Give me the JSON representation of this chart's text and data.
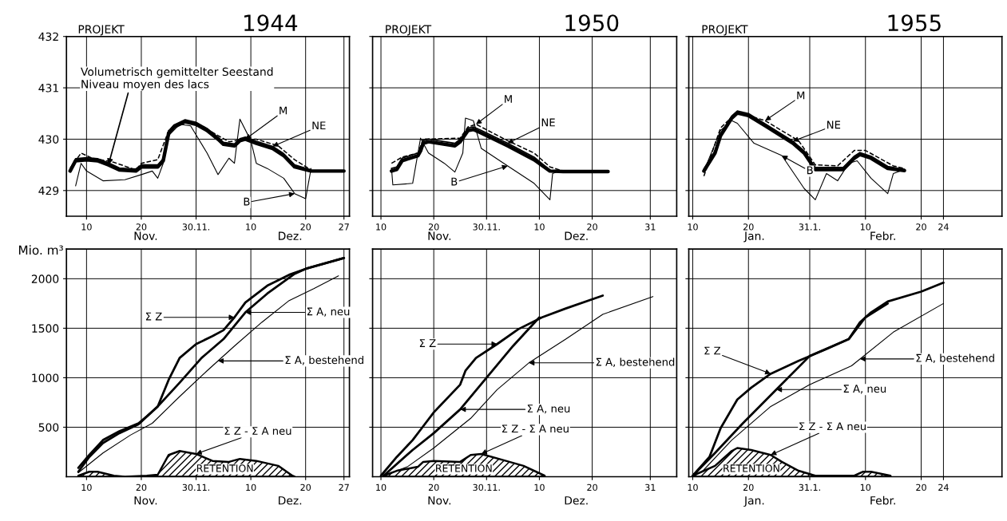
{
  "chart_data": [
    {
      "type": "line",
      "title": "1944",
      "subtitle": "PROJEKT",
      "xlim": [
        "1944-11-06T08:00",
        "1944-12-28"
      ],
      "xticks": [
        {
          "value": "1944-11-10",
          "label": "10"
        },
        {
          "value": "1944-11-20",
          "label": "20"
        },
        {
          "value": "1944-11-30",
          "label": "30.11."
        },
        {
          "value": "1944-12-10",
          "label": "10"
        },
        {
          "value": "1944-12-20",
          "label": "20"
        },
        {
          "value": "1944-12-27",
          "label": "27"
        }
      ],
      "ylim": [
        428.5,
        432
      ],
      "yticks": [
        429,
        430,
        431,
        432
      ],
      "grid": true,
      "series": [
        {
          "color": "#000000",
          "x": [
            "1944-11-07",
            "1944-11-08",
            "1944-11-10",
            "1944-11-12",
            "1944-11-14",
            "1944-11-16",
            "1944-11-19",
            "1944-11-20",
            "1944-11-23",
            "1944-11-24",
            "1944-11-25",
            "1944-11-26",
            "1944-11-28",
            "1944-11-30",
            "1944-12-02",
            "1944-12-04",
            "1944-12-05",
            "1944-12-07",
            "1944-12-08",
            "1944-12-09",
            "1944-12-11",
            "1944-12-14",
            "1944-12-16",
            "1944-12-18",
            "1944-12-21",
            "1944-12-27"
          ],
          "values": [
            429.38,
            429.58,
            429.6,
            429.58,
            429.5,
            429.4,
            429.38,
            429.46,
            429.46,
            429.58,
            430.12,
            430.24,
            430.34,
            430.29,
            430.17,
            430.0,
            429.9,
            429.87,
            429.97,
            430.0,
            429.92,
            429.82,
            429.68,
            429.46,
            429.38,
            429.38
          ]
        },
        {
          "color": "#000000",
          "line_style": "dashed",
          "x": [
            "1944-11-07",
            "1944-11-09",
            "1944-11-11",
            "1944-11-15",
            "1944-11-19",
            "1944-11-20",
            "1944-11-23",
            "1944-11-25",
            "1944-11-28",
            "1944-12-01",
            "1944-12-04",
            "1944-12-06",
            "1944-12-09",
            "1944-12-11",
            "1944-12-15",
            "1944-12-18",
            "1944-12-21"
          ],
          "values": [
            429.43,
            429.73,
            429.63,
            429.55,
            429.4,
            429.53,
            429.6,
            430.17,
            430.36,
            430.26,
            430.07,
            429.95,
            430.0,
            430.0,
            429.87,
            429.6,
            429.4
          ]
        },
        {
          "color": "#000000",
          "x": [
            "1944-11-07",
            "1944-11-08",
            "1944-11-10",
            "1944-11-12",
            "1944-11-14",
            "1944-11-16",
            "1944-11-19",
            "1944-11-20",
            "1944-11-23",
            "1944-11-24",
            "1944-11-25",
            "1944-11-26",
            "1944-11-28",
            "1944-11-30",
            "1944-12-02",
            "1944-12-04",
            "1944-12-05",
            "1944-12-07",
            "1944-12-08",
            "1944-12-09",
            "1944-12-11",
            "1944-12-14",
            "1944-12-16",
            "1944-12-18",
            "1944-12-21"
          ],
          "values": [
            429.42,
            429.62,
            429.64,
            429.62,
            429.54,
            429.44,
            429.42,
            429.5,
            429.5,
            429.62,
            430.16,
            430.28,
            430.38,
            430.33,
            430.21,
            430.04,
            429.94,
            429.91,
            430.01,
            430.04,
            429.96,
            429.86,
            429.72,
            429.5,
            429.4
          ]
        },
        {
          "color": "#000000",
          "x": [
            "1944-11-08",
            "1944-11-09",
            "1944-11-10",
            "1944-11-13",
            "1944-11-17",
            "1944-11-20",
            "1944-11-22",
            "1944-11-23",
            "1944-11-24",
            "1944-11-25",
            "1944-11-27",
            "1944-11-29",
            "1944-12-02",
            "1944-12-04",
            "1944-12-06",
            "1944-12-07",
            "1944-12-08",
            "1944-12-10",
            "1944-12-11",
            "1944-12-13",
            "1944-12-16",
            "1944-12-18",
            "1944-12-20",
            "1944-12-21"
          ],
          "values": [
            429.09,
            429.53,
            429.38,
            429.19,
            429.21,
            429.31,
            429.38,
            429.24,
            429.53,
            430.07,
            430.29,
            430.26,
            429.73,
            429.31,
            429.63,
            429.53,
            430.39,
            429.97,
            429.53,
            429.43,
            429.24,
            428.94,
            428.84,
            429.43
          ]
        }
      ],
      "annotations": [
        {
          "text": "Volumetrisch gemittelter Seestand\nNiveau moyen des lacs",
          "x": "1944-11-14",
          "y": 429.5
        },
        {
          "text": "M",
          "x": "1944-12-09",
          "y": 430.0
        },
        {
          "text": "NE",
          "x": "1944-12-14",
          "y": 429.86
        },
        {
          "text": "B",
          "x": "1944-12-18",
          "y": 428.94
        },
        "Nov.",
        "Dez."
      ]
    },
    {
      "type": "line",
      "title": "1950",
      "subtitle": "PROJEKT",
      "tick_labels": "x",
      "xlim": [
        "1950-11-08T10:00",
        "1951-01-05"
      ],
      "xticks": [
        {
          "value": "1950-11-10",
          "label": "10"
        },
        {
          "value": "1950-11-20",
          "label": "20"
        },
        {
          "value": "1950-11-30",
          "label": "30.11."
        },
        {
          "value": "1950-12-10",
          "label": "10"
        },
        {
          "value": "1950-12-20",
          "label": "20"
        },
        {
          "value": "1950-12-31",
          "label": "31"
        }
      ],
      "ylim": [
        428.5,
        432
      ],
      "yticks": [
        429,
        430,
        431,
        432
      ],
      "grid": true,
      "series": [
        {
          "color": "#000000",
          "x": [
            "1950-11-12",
            "1950-11-13",
            "1950-11-14",
            "1950-11-17",
            "1950-11-17T12:00",
            "1950-11-18",
            "1950-11-19",
            "1950-11-24",
            "1950-11-25",
            "1950-11-26T12:00",
            "1950-11-27T12:00",
            "1950-11-29",
            "1950-12-04",
            "1950-12-09",
            "1950-12-12",
            "1950-12-14T12:00",
            "1950-12-23"
          ],
          "values": [
            429.38,
            429.41,
            429.58,
            429.68,
            429.77,
            429.92,
            429.95,
            429.87,
            429.95,
            430.17,
            430.19,
            430.12,
            429.87,
            429.6,
            429.38,
            429.37,
            429.37
          ]
        },
        {
          "color": "#000000",
          "line_style": "dashed",
          "x": [
            "1950-11-12",
            "1950-11-14",
            "1950-11-17",
            "1950-11-18",
            "1950-11-25",
            "1950-11-26T12:00",
            "1950-11-28",
            "1950-12-04",
            "1950-12-09",
            "1950-12-12",
            "1950-12-14T12:00"
          ],
          "values": [
            429.53,
            429.65,
            429.73,
            430.0,
            430.02,
            430.24,
            430.29,
            429.97,
            429.73,
            429.46,
            429.38
          ]
        },
        {
          "color": "#000000",
          "x": [
            "1950-11-12",
            "1950-11-13",
            "1950-11-14",
            "1950-11-17",
            "1950-11-17T12:00",
            "1950-11-18",
            "1950-11-19",
            "1950-11-24",
            "1950-11-25",
            "1950-11-26T12:00",
            "1950-11-27T12:00",
            "1950-11-29",
            "1950-12-04",
            "1950-12-09",
            "1950-12-12"
          ],
          "values": [
            429.43,
            429.46,
            429.63,
            429.73,
            429.82,
            429.97,
            430.0,
            429.92,
            430.0,
            430.22,
            430.24,
            430.17,
            429.92,
            429.65,
            429.4
          ]
        },
        {
          "color": "#000000",
          "x": [
            "1950-11-12",
            "1950-11-12T06:00",
            "1950-11-16",
            "1950-11-17T12:00",
            "1950-11-19",
            "1950-11-22",
            "1950-11-24",
            "1950-11-25T12:00",
            "1950-11-26",
            "1950-11-27T12:00",
            "1950-11-29",
            "1950-12-04",
            "1950-12-09",
            "1950-12-12",
            "1950-12-12T12:00",
            "1950-12-13T12:00"
          ],
          "values": [
            429.43,
            429.11,
            429.14,
            430.02,
            429.73,
            429.53,
            429.36,
            429.73,
            430.41,
            430.36,
            429.82,
            429.48,
            429.14,
            428.82,
            429.33,
            429.37
          ]
        }
      ],
      "annotations": [
        {
          "text": "M",
          "x": "1950-11-28",
          "y": 430.29
        },
        {
          "text": "NE",
          "x": "1950-12-04",
          "y": 429.92
        },
        {
          "text": "B",
          "x": "1950-12-04",
          "y": 429.48
        },
        "Nov.",
        "Dez."
      ]
    },
    {
      "type": "line",
      "title": "1955",
      "subtitle": "PROJEKT",
      "tick_labels": "x",
      "xlim": [
        "1955-01-09T07:00",
        "1955-03-06T12:00"
      ],
      "xticks": [
        {
          "value": "1955-01-10",
          "label": "10"
        },
        {
          "value": "1955-01-20",
          "label": "20"
        },
        {
          "value": "1955-01-31",
          "label": "31.1."
        },
        {
          "value": "1955-02-10",
          "label": "10"
        },
        {
          "value": "1955-02-20",
          "label": "20"
        },
        {
          "value": "1955-02-24",
          "label": "24"
        }
      ],
      "ylim": [
        428.5,
        432
      ],
      "yticks": [
        429,
        430,
        431,
        432
      ],
      "grid": true,
      "series": [
        {
          "color": "#000000",
          "x": [
            "1955-01-12",
            "1955-01-14",
            "1955-01-15",
            "1955-01-17",
            "1955-01-18",
            "1955-01-20",
            "1955-01-23",
            "1955-01-28",
            "1955-01-30",
            "1955-02-01",
            "1955-02-06",
            "1955-02-08",
            "1955-02-09",
            "1955-02-11",
            "1955-02-14",
            "1955-02-17"
          ],
          "values": [
            429.38,
            429.73,
            430.07,
            430.41,
            430.51,
            430.46,
            430.26,
            429.92,
            429.73,
            429.41,
            429.41,
            429.63,
            429.7,
            429.63,
            429.43,
            429.39
          ]
        },
        {
          "color": "#000000",
          "line_style": "dashed",
          "x": [
            "1955-01-12",
            "1955-01-15",
            "1955-01-18",
            "1955-01-23",
            "1955-01-29",
            "1955-02-01",
            "1955-02-05",
            "1955-02-08",
            "1955-02-10",
            "1955-02-15",
            "1955-02-17"
          ],
          "values": [
            429.28,
            430.22,
            430.53,
            430.36,
            429.97,
            429.5,
            429.48,
            429.78,
            429.78,
            429.48,
            429.43
          ]
        },
        {
          "color": "#000000",
          "x": [
            "1955-01-12",
            "1955-01-14",
            "1955-01-15",
            "1955-01-17",
            "1955-01-18",
            "1955-01-20",
            "1955-01-23",
            "1955-01-28",
            "1955-01-30",
            "1955-02-01",
            "1955-02-06",
            "1955-02-08",
            "1955-02-09",
            "1955-02-11",
            "1955-02-14",
            "1955-02-17"
          ],
          "values": [
            429.42,
            429.77,
            430.11,
            430.45,
            430.55,
            430.5,
            430.3,
            429.96,
            429.77,
            429.45,
            429.45,
            429.67,
            429.74,
            429.67,
            429.47,
            429.41
          ]
        },
        {
          "color": "#000000",
          "x": [
            "1955-01-12",
            "1955-01-15",
            "1955-01-17",
            "1955-01-18",
            "1955-01-21",
            "1955-01-26",
            "1955-01-30",
            "1955-02-01",
            "1955-02-03",
            "1955-02-05",
            "1955-02-07",
            "1955-02-08T12:00",
            "1955-02-11",
            "1955-02-14",
            "1955-02-15",
            "1955-02-17"
          ],
          "values": [
            429.38,
            430.17,
            430.36,
            430.31,
            429.92,
            429.68,
            429.04,
            428.82,
            429.33,
            429.19,
            429.53,
            429.58,
            429.24,
            428.94,
            429.33,
            429.41
          ]
        }
      ],
      "annotations": [
        {
          "text": "M",
          "x": "1955-01-23",
          "y": 430.36
        },
        {
          "text": "NE",
          "x": "1955-01-28",
          "y": 429.96
        },
        {
          "text": "B",
          "x": "1955-01-26",
          "y": 429.68
        },
        "Jan.",
        "Febr."
      ]
    },
    {
      "type": "line",
      "ylabel": "Mio. m³",
      "xlim": [
        "1944-11-06T08:00",
        "1944-12-28"
      ],
      "xticks": [
        {
          "value": "1944-11-10",
          "label": "10"
        },
        {
          "value": "1944-11-20",
          "label": "20"
        },
        {
          "value": "1944-11-30",
          "label": "30.11."
        },
        {
          "value": "1944-12-10",
          "label": "10"
        },
        {
          "value": "1944-12-20",
          "label": "20"
        },
        {
          "value": "1944-12-27",
          "label": "27"
        }
      ],
      "ylim": [
        0,
        2300
      ],
      "yticks": [
        500,
        1000,
        1500,
        2000
      ],
      "grid": true,
      "series": [
        {
          "color": "#000000",
          "x": [
            "1944-11-08T12:00",
            "1944-11-10T12:00",
            "1944-11-13",
            "1944-11-16",
            "1944-11-19T12:00",
            "1944-11-21",
            "1944-11-23",
            "1944-11-25",
            "1944-11-27",
            "1944-11-30",
            "1944-12-03",
            "1944-12-05",
            "1944-12-07",
            "1944-12-09",
            "1944-12-13",
            "1944-12-17",
            "1944-12-20",
            "1944-12-27"
          ],
          "values": [
            90,
            220,
            370,
            460,
            540,
            610,
            710,
            980,
            1200,
            1340,
            1420,
            1480,
            1610,
            1760,
            1930,
            2040,
            2100,
            2210
          ]
        },
        {
          "color": "#000000",
          "x": [
            "1944-11-08T12:00",
            "1944-11-10T12:00",
            "1944-11-13",
            "1944-11-16",
            "1944-11-19T12:00",
            "1944-11-23",
            "1944-11-27",
            "1944-12-01",
            "1944-12-05",
            "1944-12-09",
            "1944-12-13",
            "1944-12-18",
            "1944-12-20",
            "1944-12-27"
          ],
          "values": [
            50,
            200,
            340,
            440,
            530,
            710,
            950,
            1200,
            1390,
            1660,
            1850,
            2050,
            2100,
            2210
          ]
        },
        {
          "color": "#000000",
          "x": [
            "1944-11-08T12:00",
            "1944-11-13",
            "1944-11-18",
            "1944-11-22",
            "1944-11-27",
            "1944-12-02",
            "1944-12-07",
            "1944-12-12",
            "1944-12-17",
            "1944-12-21T12:00",
            "1944-12-26"
          ],
          "values": [
            40,
            240,
            420,
            540,
            810,
            1070,
            1320,
            1560,
            1780,
            1900,
            2030
          ]
        },
        {
          "type": "area",
          "color": "#000000",
          "x": [
            "1944-11-08T12:00",
            "1944-11-10T12:00",
            "1944-11-12",
            "1944-11-15",
            "1944-11-17",
            "1944-11-21",
            "1944-11-23",
            "1944-11-25",
            "1944-11-27",
            "1944-11-30",
            "1944-12-03",
            "1944-12-06",
            "1944-12-08",
            "1944-12-11",
            "1944-12-15",
            "1944-12-17T14:00",
            "1944-12-18"
          ],
          "values": [
            10,
            50,
            50,
            10,
            0,
            10,
            20,
            220,
            260,
            230,
            160,
            150,
            180,
            160,
            110,
            10,
            0
          ]
        }
      ],
      "annotations": [
        {
          "text": "Σ Z",
          "x": "1944-12-07",
          "y": 1610
        },
        {
          "text": "Σ A, neu",
          "x": "1944-12-09",
          "y": 1660
        },
        {
          "text": "Σ A, bestehend",
          "x": "1944-12-04",
          "y": 1170
        },
        {
          "text": "Σ Z - Σ A neu",
          "x": "1944-11-30",
          "y": 230
        },
        "RETENTION",
        "Nov.",
        "Dez."
      ]
    },
    {
      "type": "line",
      "tick_labels": "x",
      "xlim": [
        "1950-11-08T10:00",
        "1951-01-05"
      ],
      "xticks": [
        {
          "value": "1950-11-10",
          "label": "10"
        },
        {
          "value": "1950-11-20",
          "label": "20"
        },
        {
          "value": "1950-11-30",
          "label": "30.11."
        },
        {
          "value": "1950-12-10",
          "label": "10"
        },
        {
          "value": "1950-12-20",
          "label": "20"
        },
        {
          "value": "1950-12-31",
          "label": "31"
        }
      ],
      "ylim": [
        0,
        2300
      ],
      "yticks": [
        500,
        1000,
        1500,
        2000
      ],
      "grid": true,
      "series": [
        {
          "color": "#000000",
          "x": [
            "1950-11-10",
            "1950-11-13",
            "1950-11-16",
            "1950-11-18",
            "1950-11-20",
            "1950-11-25",
            "1950-11-26",
            "1950-11-28",
            "1950-12-02",
            "1950-12-06",
            "1950-12-10T12:00",
            "1950-12-15",
            "1950-12-22"
          ],
          "values": [
            10,
            200,
            370,
            510,
            650,
            930,
            1070,
            1200,
            1340,
            1490,
            1610,
            1700,
            1830
          ]
        },
        {
          "color": "#000000",
          "x": [
            "1950-11-10T12:00",
            "1950-11-16",
            "1950-11-20",
            "1950-11-25",
            "1950-11-30",
            "1950-12-05",
            "1950-12-10"
          ],
          "values": [
            10,
            270,
            440,
            680,
            1000,
            1320,
            1610
          ]
        },
        {
          "color": "#000000",
          "x": [
            "1950-11-10T12:00",
            "1950-11-15",
            "1950-11-20",
            "1950-11-27",
            "1950-12-02",
            "1950-12-08",
            "1950-12-15",
            "1950-12-22",
            "1950-12-31T12:00"
          ],
          "values": [
            10,
            100,
            290,
            590,
            880,
            1150,
            1390,
            1640,
            1820
          ]
        },
        {
          "type": "area",
          "color": "#000000",
          "x": [
            "1950-11-10T12:00",
            "1950-11-13",
            "1950-11-17",
            "1950-11-18",
            "1950-11-20",
            "1950-11-25",
            "1950-11-27",
            "1950-11-29",
            "1950-12-03",
            "1950-12-07",
            "1950-12-11"
          ],
          "values": [
            10,
            60,
            100,
            150,
            160,
            150,
            220,
            230,
            170,
            110,
            10
          ]
        }
      ],
      "annotations": [
        {
          "text": "Σ Z",
          "x": "1950-12-02",
          "y": 1340
        },
        {
          "text": "Σ A, bestehend",
          "x": "1950-12-08",
          "y": 1150
        },
        {
          "text": "Σ A, neu",
          "x": "1950-11-25",
          "y": 680
        },
        {
          "text": "Σ Z - Σ A neu",
          "x": "1950-11-29",
          "y": 230
        },
        "RETENTION",
        "Nov.",
        "Dez."
      ]
    },
    {
      "type": "line",
      "tick_labels": "x",
      "xlim": [
        "1955-01-09T07:00",
        "1955-03-06T12:00"
      ],
      "xticks": [
        {
          "value": "1955-01-10",
          "label": "10"
        },
        {
          "value": "1955-01-20",
          "label": "20"
        },
        {
          "value": "1955-01-31",
          "label": "31.1."
        },
        {
          "value": "1955-02-10",
          "label": "10"
        },
        {
          "value": "1955-02-20",
          "label": "20"
        },
        {
          "value": "1955-02-24",
          "label": "24"
        }
      ],
      "ylim": [
        0,
        2300
      ],
      "yticks": [
        500,
        1000,
        1500,
        2000
      ],
      "grid": true,
      "series": [
        {
          "color": "#000000",
          "x": [
            "1955-01-10",
            "1955-01-13",
            "1955-01-15",
            "1955-01-18",
            "1955-01-20T12:00",
            "1955-01-24",
            "1955-01-29",
            "1955-02-03",
            "1955-02-07",
            "1955-02-09",
            "1955-02-11",
            "1955-02-14",
            "1955-02-20",
            "1955-02-24"
          ],
          "values": [
            10,
            200,
            490,
            780,
            900,
            1040,
            1170,
            1290,
            1390,
            1560,
            1660,
            1770,
            1870,
            1960
          ]
        },
        {
          "color": "#000000",
          "x": [
            "1955-01-10",
            "1955-01-14",
            "1955-01-19",
            "1955-01-25",
            "1955-01-31",
            "1955-02-07",
            "1955-02-10",
            "1955-02-14"
          ],
          "values": [
            10,
            240,
            540,
            880,
            1220,
            1390,
            1610,
            1750
          ]
        },
        {
          "color": "#000000",
          "x": [
            "1955-01-11",
            "1955-01-17",
            "1955-01-24",
            "1955-01-31",
            "1955-02-07T12:00",
            "1955-02-15",
            "1955-02-24"
          ],
          "values": [
            10,
            370,
            710,
            930,
            1120,
            1460,
            1750
          ]
        },
        {
          "type": "area",
          "color": "#000000",
          "x": [
            "1955-01-10",
            "1955-01-14",
            "1955-01-17",
            "1955-01-18",
            "1955-01-20T12:00",
            "1955-01-24",
            "1955-01-26",
            "1955-01-29",
            "1955-02-01",
            "1955-02-08",
            "1955-02-09T12:00",
            "1955-02-11",
            "1955-02-14T12:00"
          ],
          "values": [
            10,
            110,
            260,
            290,
            270,
            220,
            150,
            60,
            10,
            10,
            50,
            50,
            10
          ]
        }
      ],
      "annotations": [
        {
          "text": "Σ Z",
          "x": "1955-01-24",
          "y": 1040
        },
        {
          "text": "Σ A, bestehend",
          "x": "1955-02-09",
          "y": 1190
        },
        {
          "text": "Σ A, neu",
          "x": "1955-01-25",
          "y": 880
        },
        {
          "text": "Σ Z - Σ A neu",
          "x": "1955-01-24",
          "y": 220
        },
        "RETENTION",
        "Jan.",
        "Febr."
      ]
    }
  ]
}
